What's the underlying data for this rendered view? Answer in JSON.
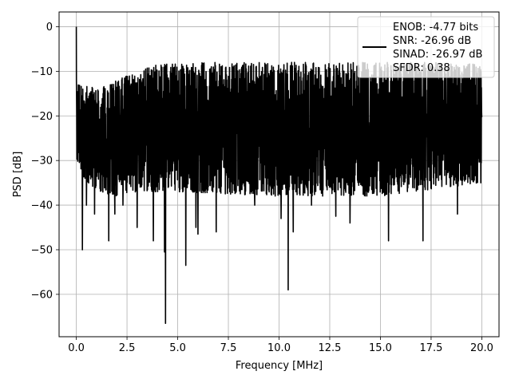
{
  "chart_data": {
    "type": "line",
    "xlabel": "Frequency [MHz]",
    "ylabel": "PSD [dB]",
    "xlim": [
      -0.85,
      20.85
    ],
    "ylim": [
      -69.5,
      3.3
    ],
    "xticks": [
      0.0,
      2.5,
      5.0,
      7.5,
      10.0,
      12.5,
      15.0,
      17.5,
      20.0
    ],
    "xtick_labels": [
      "0.0",
      "2.5",
      "5.0",
      "7.5",
      "10.0",
      "12.5",
      "15.0",
      "17.5",
      "20.0"
    ],
    "yticks": [
      0,
      -10,
      -20,
      -30,
      -40,
      -50,
      -60
    ],
    "ytick_labels": [
      "0",
      "−10",
      "−20",
      "−30",
      "−40",
      "−50",
      "−60"
    ],
    "grid": true,
    "legend_position": "upper right",
    "legend": [
      "ENOB: -4.77 bits",
      "SNR: -26.96 dB",
      "SINAD: -26.97 dB",
      "SFDR: 0.38"
    ],
    "series": [
      {
        "color": "#000000",
        "x_range": [
          0,
          20
        ],
        "dc_peak": 0,
        "noise_upper_envelope": [
          [
            0,
            -12
          ],
          [
            1,
            -14
          ],
          [
            2,
            -12
          ],
          [
            3,
            -10
          ],
          [
            4,
            -8.5
          ],
          [
            6,
            -8
          ],
          [
            10,
            -8
          ],
          [
            14,
            -8
          ],
          [
            18,
            -8
          ],
          [
            20,
            -8.5
          ]
        ],
        "noise_lower_envelope": [
          [
            0,
            -32
          ],
          [
            1,
            -37
          ],
          [
            2,
            -38
          ],
          [
            3,
            -37
          ],
          [
            5,
            -37
          ],
          [
            10,
            -38
          ],
          [
            15,
            -38
          ],
          [
            20,
            -35
          ]
        ],
        "minima": [
          [
            0.3,
            -47
          ],
          [
            0.3,
            -50
          ],
          [
            0.5,
            -40
          ],
          [
            0.9,
            -42
          ],
          [
            1.6,
            -48
          ],
          [
            1.9,
            -42
          ],
          [
            2.3,
            -40
          ],
          [
            3.0,
            -45
          ],
          [
            3.8,
            -48
          ],
          [
            4.35,
            -50.5
          ],
          [
            4.4,
            -66.5
          ],
          [
            5.4,
            -53.5
          ],
          [
            5.9,
            -45
          ],
          [
            6.0,
            -46.5
          ],
          [
            6.9,
            -46
          ],
          [
            8.8,
            -40
          ],
          [
            10.1,
            -43
          ],
          [
            10.45,
            -59
          ],
          [
            10.7,
            -46
          ],
          [
            11.6,
            -40
          ],
          [
            12.8,
            -42.5
          ],
          [
            13.5,
            -44
          ],
          [
            15.4,
            -48
          ],
          [
            17.1,
            -48
          ],
          [
            18.8,
            -42
          ]
        ]
      }
    ]
  }
}
